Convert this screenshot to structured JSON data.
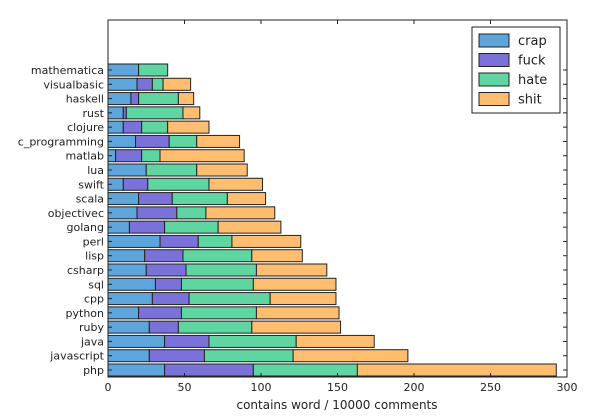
{
  "chart_data": {
    "type": "bar",
    "orientation": "horizontal",
    "stacked": true,
    "title": "",
    "xlabel": "contains word / 10000 comments",
    "ylabel": "",
    "xlim": [
      0,
      300
    ],
    "xticks": [
      "0",
      "50",
      "100",
      "150",
      "200",
      "250",
      "300"
    ],
    "legend_position": "top-right",
    "categories": [
      "mathematica",
      "visualbasic",
      "haskell",
      "rust",
      "clojure",
      "c_programming",
      "matlab",
      "lua",
      "swift",
      "scala",
      "objectivec",
      "golang",
      "perl",
      "lisp",
      "csharp",
      "sql",
      "cpp",
      "python",
      "ruby",
      "java",
      "javascript",
      "php"
    ],
    "series": [
      {
        "name": "crap",
        "color": "#5da5da",
        "values": [
          20,
          19,
          15,
          10,
          10,
          18,
          5,
          25,
          10,
          20,
          19,
          14,
          34,
          24,
          25,
          31,
          29,
          20,
          27,
          37,
          27,
          37
        ]
      },
      {
        "name": "fuck",
        "color": "#7b72d9",
        "values": [
          0,
          10,
          5,
          2,
          12,
          22,
          17,
          0,
          16,
          22,
          26,
          23,
          25,
          25,
          26,
          17,
          24,
          28,
          19,
          29,
          36,
          58
        ]
      },
      {
        "name": "hate",
        "color": "#5fd6a2",
        "values": [
          19,
          7,
          26,
          37,
          17,
          18,
          12,
          33,
          40,
          36,
          19,
          35,
          22,
          45,
          46,
          47,
          53,
          49,
          48,
          57,
          58,
          68
        ]
      },
      {
        "name": "shit",
        "color": "#ffbd6f",
        "values": [
          0,
          18,
          10,
          11,
          27,
          28,
          55,
          33,
          35,
          25,
          45,
          41,
          45,
          33,
          46,
          54,
          43,
          54,
          58,
          51,
          75,
          130
        ]
      }
    ]
  }
}
